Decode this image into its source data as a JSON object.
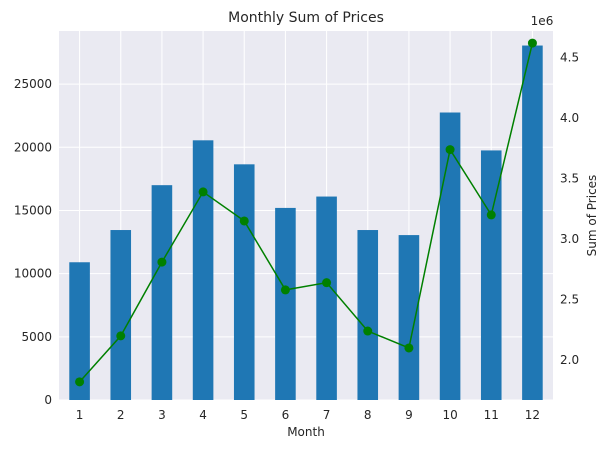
{
  "chart_data": {
    "type": "bar",
    "title": "Monthly Sum of Prices",
    "xlabel": "Month",
    "ylabel": "",
    "y2label": "Sum of Prices",
    "y2_multiplier_label": "1e6",
    "categories": [
      "1",
      "2",
      "3",
      "4",
      "5",
      "6",
      "7",
      "8",
      "9",
      "10",
      "11",
      "12"
    ],
    "ylim": [
      0,
      29200
    ],
    "yticks": [
      0,
      5000,
      10000,
      15000,
      20000,
      25000
    ],
    "y2lim": [
      1.67,
      4.72
    ],
    "y2ticks": [
      2.0,
      2.5,
      3.0,
      3.5,
      4.0,
      4.5
    ],
    "series": [
      {
        "axis": "left",
        "kind": "bar",
        "color": "#1f77b4",
        "values": [
          10900,
          13450,
          17000,
          20550,
          18650,
          15200,
          16100,
          13450,
          13050,
          22750,
          19750,
          28050
        ]
      },
      {
        "axis": "right",
        "kind": "line",
        "color": "#008000",
        "marker": "circle",
        "values": [
          1.82,
          2.2,
          2.81,
          3.39,
          3.15,
          2.58,
          2.64,
          2.24,
          2.1,
          3.74,
          3.2,
          4.62
        ]
      }
    ],
    "grid": true,
    "background": "#eaeaf2"
  }
}
